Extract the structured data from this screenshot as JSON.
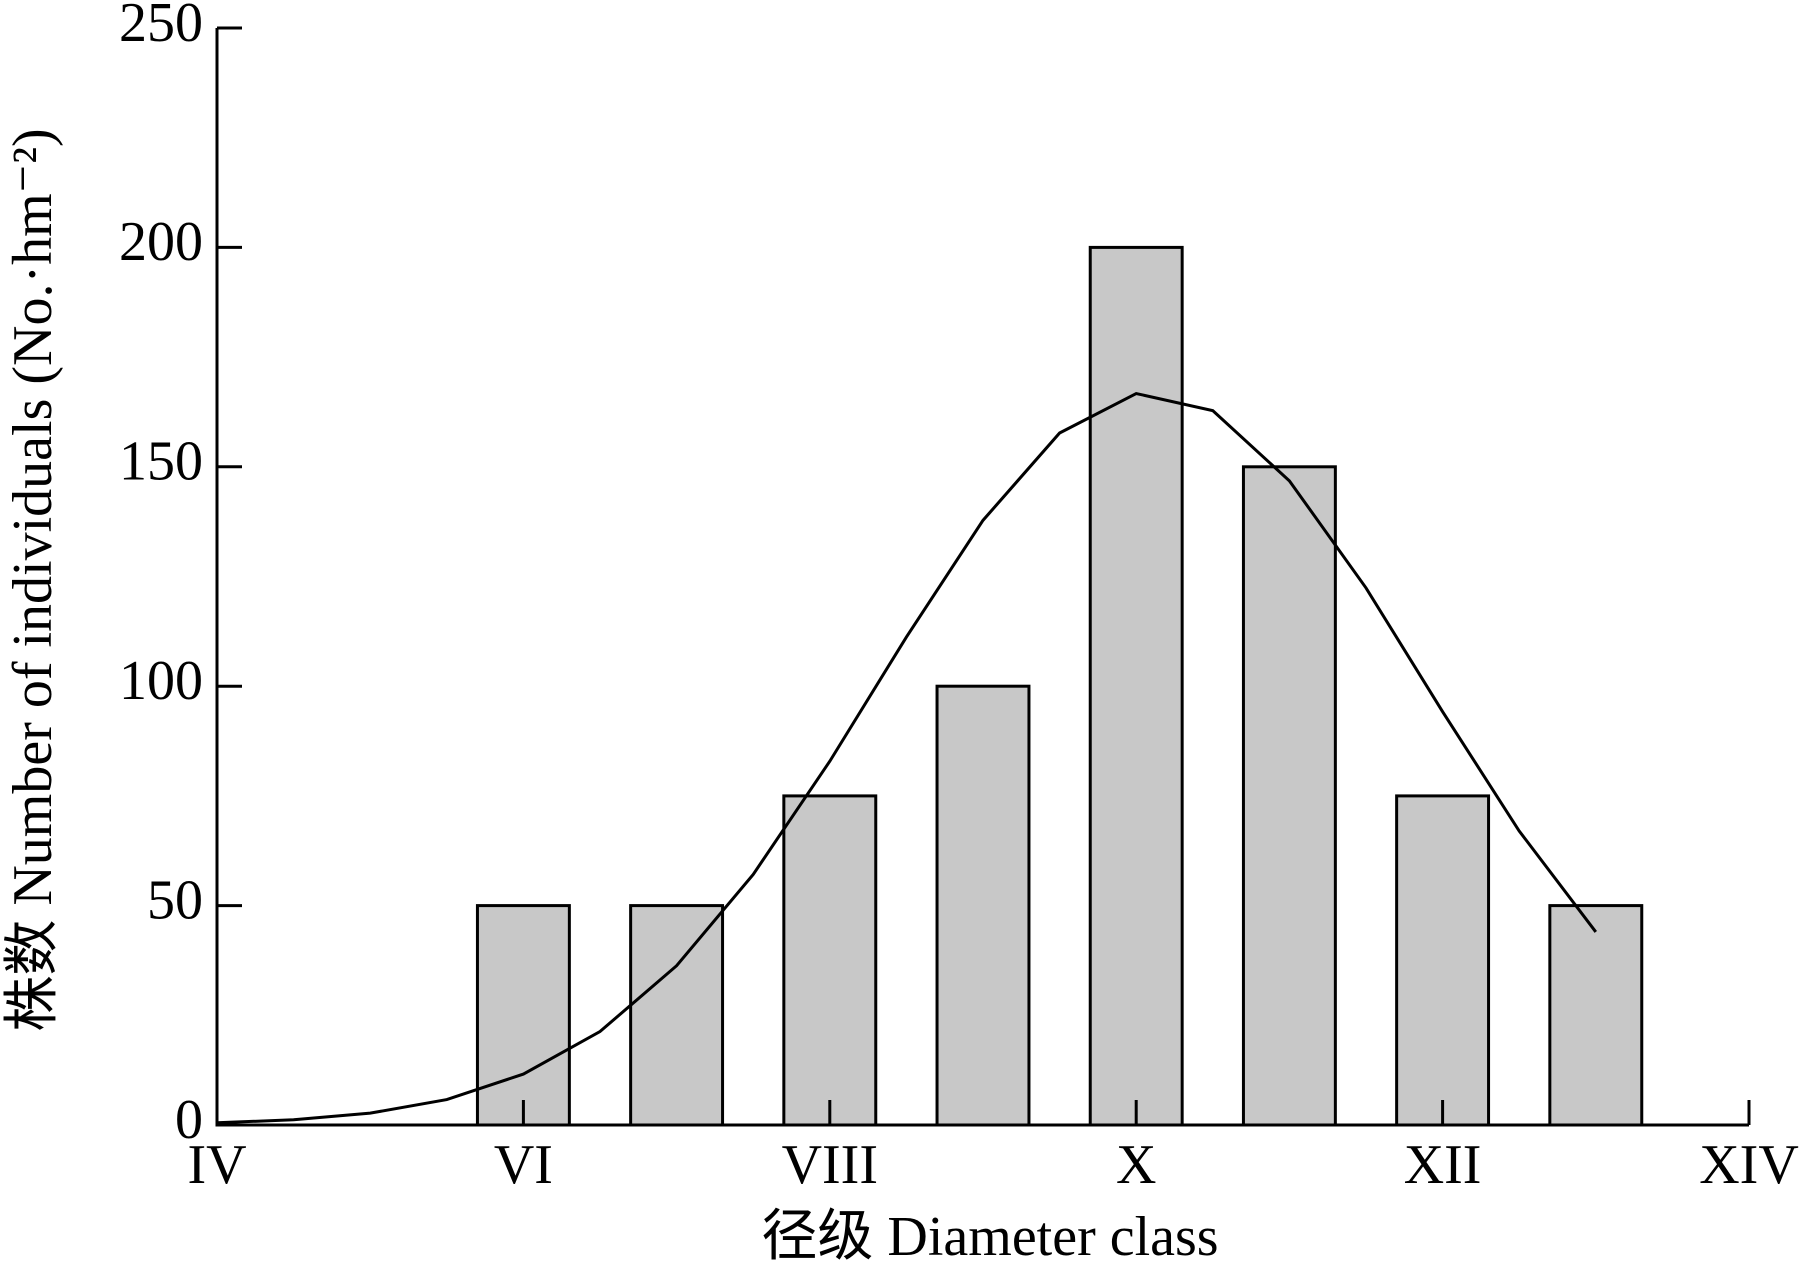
{
  "chart_data": {
    "type": "bar",
    "x_label": "径级 Diameter class",
    "y_label": "株数 Number of individuals (No.·hm⁻²)",
    "xlim": [
      4,
      14
    ],
    "xticks": [
      {
        "value": 4,
        "label": "IV"
      },
      {
        "value": 6,
        "label": "VI"
      },
      {
        "value": 8,
        "label": "VIII"
      },
      {
        "value": 10,
        "label": "X"
      },
      {
        "value": 12,
        "label": "XII"
      },
      {
        "value": 14,
        "label": "XIV"
      }
    ],
    "ylim": [
      0,
      250
    ],
    "yticks": [
      0,
      50,
      100,
      150,
      200,
      250
    ],
    "series": [
      {
        "type": "bar",
        "color": "#c8c8c8",
        "x": [
          6,
          7,
          8,
          9,
          10,
          11,
          12,
          13
        ],
        "values": [
          50,
          50,
          75,
          100,
          200,
          150,
          75,
          50
        ]
      },
      {
        "type": "line",
        "color": "#000000",
        "x": [
          4,
          4.5,
          5,
          5.5,
          6,
          6.5,
          7,
          7.5,
          8,
          8.5,
          9,
          9.5,
          10,
          10.5,
          11,
          11.5,
          12,
          12.5,
          13
        ],
        "values": [
          0.5,
          1.2,
          2.7,
          5.8,
          11.6,
          21.3,
          36.3,
          57.1,
          82.9,
          111.2,
          137.8,
          157.7,
          166.7,
          162.8,
          146.8,
          122.4,
          94.2,
          67,
          44
        ]
      }
    ]
  }
}
